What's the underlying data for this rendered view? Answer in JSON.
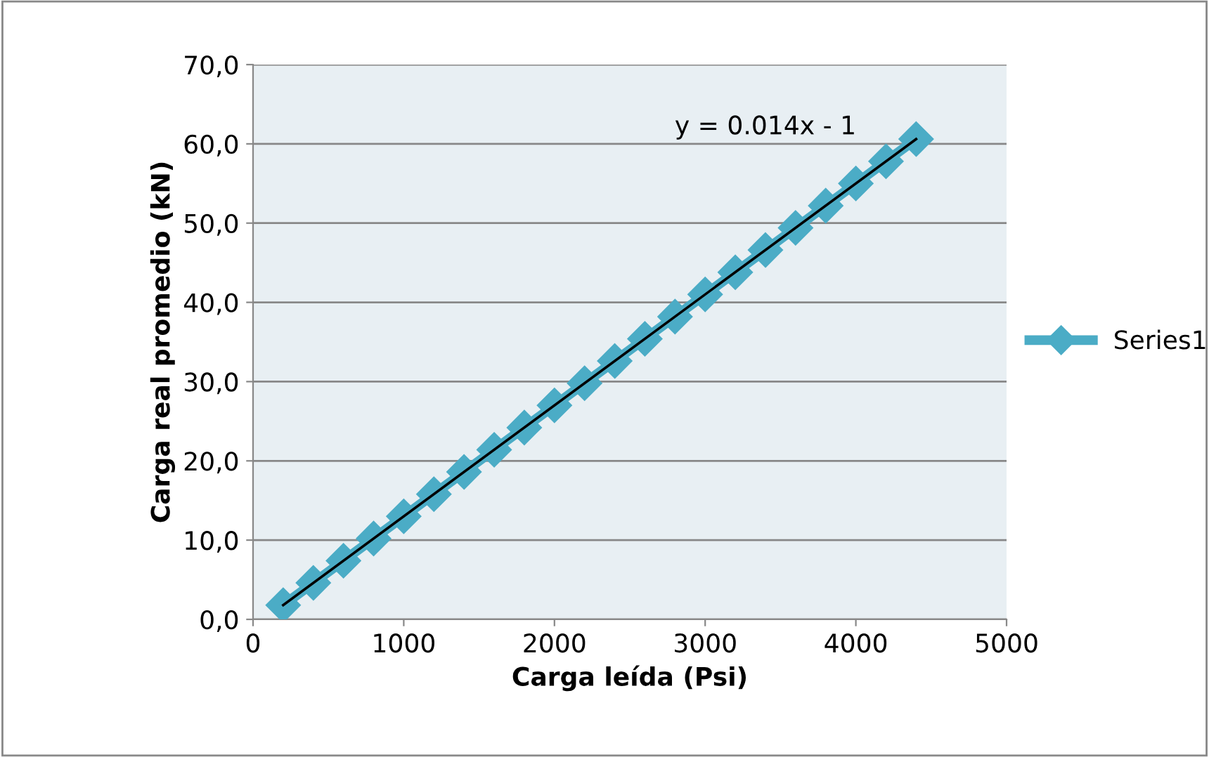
{
  "chart_data": {
    "type": "line",
    "xlabel": "Carga leída (Psi)",
    "ylabel": "Carga real promedio (kN)",
    "xlim": [
      0,
      5000
    ],
    "xticks": [
      0,
      1000,
      2000,
      3000,
      4000,
      5000
    ],
    "ylim": [
      0,
      70
    ],
    "yticks": [
      {
        "value": 0,
        "label": "0,0"
      },
      {
        "value": 10,
        "label": "10,0"
      },
      {
        "value": 20,
        "label": "20,0"
      },
      {
        "value": 30,
        "label": "30,0"
      },
      {
        "value": 40,
        "label": "40,0"
      },
      {
        "value": 50,
        "label": "50,0"
      },
      {
        "value": 60,
        "label": "60,0"
      },
      {
        "value": 70,
        "label": "70,0"
      }
    ],
    "grid": "y",
    "legend": "right",
    "marker": "diamond",
    "line_style": "solid",
    "series": [
      {
        "name": "Series1",
        "color": "#4bacc6",
        "x": [
          200,
          400,
          600,
          800,
          1000,
          1200,
          1400,
          1600,
          1800,
          2000,
          2200,
          2400,
          2600,
          2800,
          3000,
          3200,
          3400,
          3600,
          3800,
          4000,
          4200,
          4400
        ],
        "values": [
          1.8,
          4.6,
          7.4,
          10.2,
          13.0,
          15.8,
          18.6,
          21.4,
          24.2,
          27.0,
          29.8,
          32.6,
          35.4,
          38.2,
          41.0,
          43.8,
          46.6,
          49.4,
          52.2,
          55.0,
          57.8,
          60.6
        ]
      },
      {
        "type": "line",
        "color": "#000000",
        "marker": "none",
        "x": [
          200,
          4400
        ],
        "values": [
          1.8,
          60.6
        ]
      }
    ],
    "annotations": [
      "y = 0.014x - 1"
    ]
  }
}
